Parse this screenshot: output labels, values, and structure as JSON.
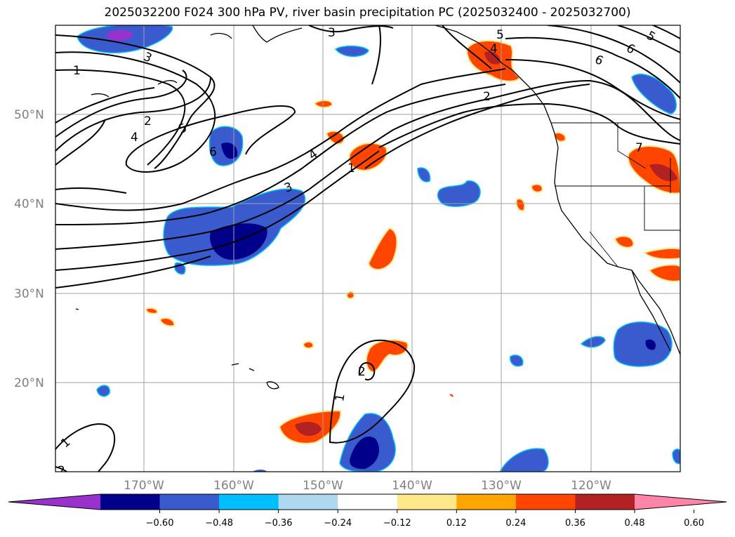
{
  "title": "2025032200 F024 300 hPa PV, river basin precipitation PC (2025032400 - 2025032700)",
  "lat_labels": [
    "50°N",
    "40°N",
    "30°N",
    "20°N"
  ],
  "lon_labels": [
    "170°W",
    "160°W",
    "150°W",
    "140°W",
    "130°W",
    "120°W"
  ],
  "colorbar": {
    "ticks": [
      "−0.60",
      "−0.48",
      "−0.36",
      "−0.24",
      "−0.12",
      "0.12",
      "0.24",
      "0.36",
      "0.48",
      "0.60"
    ],
    "colors": [
      "#9932cc",
      "#00008b",
      "#3a5bcd",
      "#00bfff",
      "#add8f0",
      "#ffffff",
      "#ffe88a",
      "#ffa500",
      "#ff4500",
      "#b22222",
      "#ff85a8"
    ]
  },
  "contour_labels": [
    "3",
    "5",
    "6",
    "1",
    "3",
    "2",
    "5",
    "4",
    "6",
    "4",
    "3",
    "1",
    "2",
    "1",
    "1",
    "2",
    "6",
    "5",
    "4",
    "7",
    "2"
  ]
}
